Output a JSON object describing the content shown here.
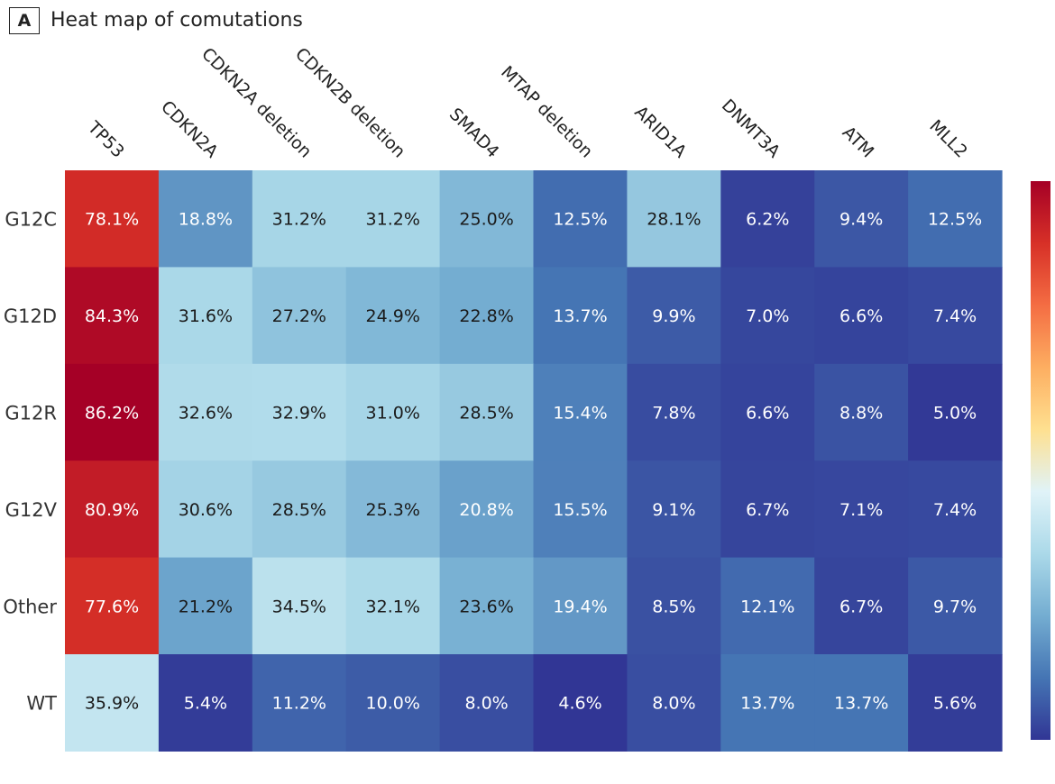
{
  "panel": {
    "label": "A",
    "title": "Heat map of comutations"
  },
  "chart_data": {
    "type": "heatmap",
    "title": "Heat map of comutations",
    "columns": [
      "TP53",
      "CDKN2A",
      "CDKN2A deletion",
      "CDKN2B deletion",
      "SMAD4",
      "MTAP deletion",
      "ARID1A",
      "DNMT3A",
      "ATM",
      "MLL2"
    ],
    "rows": [
      "G12C",
      "G12D",
      "G12R",
      "G12V",
      "Other",
      "WT"
    ],
    "values": [
      [
        78.1,
        18.8,
        31.2,
        31.2,
        25.0,
        12.5,
        28.1,
        6.2,
        9.4,
        12.5
      ],
      [
        84.3,
        31.6,
        27.2,
        24.9,
        22.8,
        13.7,
        9.9,
        7.0,
        6.6,
        7.4
      ],
      [
        86.2,
        32.6,
        32.9,
        31.0,
        28.5,
        15.4,
        7.8,
        6.6,
        8.8,
        5.0
      ],
      [
        80.9,
        30.6,
        28.5,
        25.3,
        20.8,
        15.5,
        9.1,
        6.7,
        7.1,
        7.4
      ],
      [
        77.6,
        21.2,
        34.5,
        32.1,
        23.6,
        19.4,
        8.5,
        12.1,
        6.7,
        9.7
      ],
      [
        35.9,
        5.4,
        11.2,
        10.0,
        8.0,
        4.6,
        8.0,
        13.7,
        13.7,
        5.6
      ]
    ],
    "labels": [
      [
        "78.1%",
        "18.8%",
        "31.2%",
        "31.2%",
        "25.0%",
        "12.5%",
        "28.1%",
        "6.2%",
        "9.4%",
        "12.5%"
      ],
      [
        "84.3%",
        "31.6%",
        "27.2%",
        "24.9%",
        "22.8%",
        "13.7%",
        "9.9%",
        "7.0%",
        "6.6%",
        "7.4%"
      ],
      [
        "86.2%",
        "32.6%",
        "32.9%",
        "31.0%",
        "28.5%",
        "15.4%",
        "7.8%",
        "6.6%",
        "8.8%",
        "5.0%"
      ],
      [
        "80.9%",
        "30.6%",
        "28.5%",
        "25.3%",
        "20.8%",
        "15.5%",
        "9.1%",
        "6.7%",
        "7.1%",
        "7.4%"
      ],
      [
        "77.6%",
        "21.2%",
        "34.5%",
        "32.1%",
        "23.6%",
        "19.4%",
        "8.5%",
        "12.1%",
        "6.7%",
        "9.7%"
      ],
      [
        "35.9%",
        "5.4%",
        "11.2%",
        "10.0%",
        "8.0%",
        "4.6%",
        "8.0%",
        "13.7%",
        "13.7%",
        "5.6%"
      ]
    ],
    "colorscale": [
      "#313695",
      "#4575b4",
      "#74add1",
      "#abd9e9",
      "#e0f3f8",
      "#fee090",
      "#fdae61",
      "#f46d43",
      "#d73027",
      "#a50026"
    ],
    "colorbar": {
      "ticks": [],
      "position": "right"
    },
    "legend": "none"
  }
}
